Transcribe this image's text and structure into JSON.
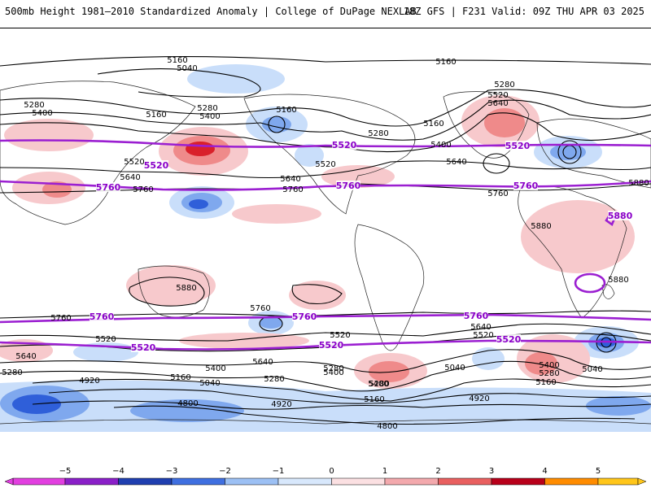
{
  "header": {
    "title": "500mb Height 1981–2010 Standardized Anomaly | College of DuPage NEXLAB",
    "run_info": "18Z GFS | F231 Valid: 09Z THU APR 03 2025"
  },
  "colors": {
    "purple_contour": "#9b1fd1",
    "neg_light": "#c9defa",
    "neg_mid": "#7fa8ee",
    "neg_dark": "#2f5fd9",
    "pos_light": "#f7c9cc",
    "pos_mid": "#ef8a8a",
    "pos_dark": "#d9202a"
  },
  "contour_labels": [
    {
      "id": "nh-5160-a",
      "text": "5160"
    },
    {
      "id": "nh-5160-b",
      "text": "5160"
    },
    {
      "id": "nh-5040",
      "text": "5040"
    },
    {
      "id": "nh-5280-a",
      "text": "5280"
    },
    {
      "id": "nh-5400-a",
      "text": "5400"
    },
    {
      "id": "nh-5160-c",
      "text": "5160"
    },
    {
      "id": "nh-5280-b",
      "text": "5280"
    },
    {
      "id": "nh-5400-b",
      "text": "5400"
    },
    {
      "id": "nh-5160-d",
      "text": "5160"
    },
    {
      "id": "nh-5280-c",
      "text": "5280"
    },
    {
      "id": "nh-5160-e",
      "text": "5160"
    },
    {
      "id": "nh-5400-c",
      "text": "5400"
    },
    {
      "id": "nh-5280-d",
      "text": "5280"
    },
    {
      "id": "nh-5520-a",
      "text": "5520"
    },
    {
      "id": "nh-5640-a",
      "text": "5640"
    },
    {
      "id": "nh-5520-b",
      "text": "5520"
    },
    {
      "id": "nh-5640-b",
      "text": "5640"
    },
    {
      "id": "nh-5640-c",
      "text": "5640"
    },
    {
      "id": "nh-5760-a",
      "text": "5760"
    },
    {
      "id": "nh-5640-d",
      "text": "5640"
    },
    {
      "id": "nh-5760-b",
      "text": "5760"
    },
    {
      "id": "nh-5520-c",
      "text": "5520"
    },
    {
      "id": "nh-5760-c",
      "text": "5760"
    },
    {
      "id": "nh-5880-a",
      "text": "5880"
    },
    {
      "id": "nh-5880-b",
      "text": "5880"
    },
    {
      "id": "tr-5880",
      "text": "5880"
    },
    {
      "id": "af-5880",
      "text": "5880"
    },
    {
      "id": "sh-5760-a",
      "text": "5760"
    },
    {
      "id": "sh-5760-b",
      "text": "5760"
    },
    {
      "id": "sh-5520-a",
      "text": "5520"
    },
    {
      "id": "sh-5640-a",
      "text": "5640"
    },
    {
      "id": "sh-5520-b",
      "text": "5520"
    },
    {
      "id": "sh-5640-b",
      "text": "5640"
    },
    {
      "id": "sh-5520-c",
      "text": "5520"
    },
    {
      "id": "sh-5640-c",
      "text": "5640"
    },
    {
      "id": "sh-5400-a",
      "text": "5400"
    },
    {
      "id": "sh-5280-a",
      "text": "5280"
    },
    {
      "id": "sh-5280-b",
      "text": "5280"
    },
    {
      "id": "sh-5160-a",
      "text": "5160"
    },
    {
      "id": "sh-5040-a",
      "text": "5040"
    },
    {
      "id": "sh-4920-a",
      "text": "4920"
    },
    {
      "id": "sh-5400-b",
      "text": "5400"
    },
    {
      "id": "sh-5280-c",
      "text": "5280"
    },
    {
      "id": "sh-5400-c",
      "text": "5400"
    },
    {
      "id": "sh-5040-b",
      "text": "5040"
    },
    {
      "id": "sh-5160-b",
      "text": "5160"
    },
    {
      "id": "sh-4800-a",
      "text": "4800"
    },
    {
      "id": "sh-4920-b",
      "text": "4920"
    },
    {
      "id": "sh-4920-c",
      "text": "4920"
    },
    {
      "id": "sh-4800-b",
      "text": "4800"
    },
    {
      "id": "sh-5400-d",
      "text": "5400"
    },
    {
      "id": "sh-5280-d",
      "text": "5280"
    },
    {
      "id": "sh-5160-c",
      "text": "5160"
    },
    {
      "id": "sh-5040-c",
      "text": "5040"
    },
    {
      "id": "sh-5280-e",
      "text": "5280"
    }
  ],
  "purple_labels": [
    {
      "id": "p-5520-a",
      "text": "5520"
    },
    {
      "id": "p-5520-b",
      "text": "5520"
    },
    {
      "id": "p-5520-c",
      "text": "5520"
    },
    {
      "id": "p-5760-a",
      "text": "5760"
    },
    {
      "id": "p-5760-b",
      "text": "5760"
    },
    {
      "id": "p-5760-c",
      "text": "5760"
    },
    {
      "id": "p-5760-d",
      "text": "5760"
    },
    {
      "id": "p-5760-e",
      "text": "5760"
    },
    {
      "id": "p-5760-f",
      "text": "5760"
    },
    {
      "id": "p-5520-d",
      "text": "5520"
    },
    {
      "id": "p-5520-e",
      "text": "5520"
    },
    {
      "id": "p-5520-f",
      "text": "5520"
    },
    {
      "id": "p-5880",
      "text": "5880"
    }
  ],
  "colorbar": {
    "ticks": [
      "−5",
      "−4",
      "−3",
      "−2",
      "−1",
      "0",
      "1",
      "2",
      "3",
      "4",
      "5"
    ],
    "bins": [
      "#e23fe0",
      "#8a1fc8",
      "#1f3fb0",
      "#3f6fe0",
      "#9cc0f4",
      "#d8e8fc",
      "#fbe0e2",
      "#f3a9ad",
      "#e96060",
      "#b8001a",
      "#ff8c00",
      "#ffc61a"
    ]
  }
}
